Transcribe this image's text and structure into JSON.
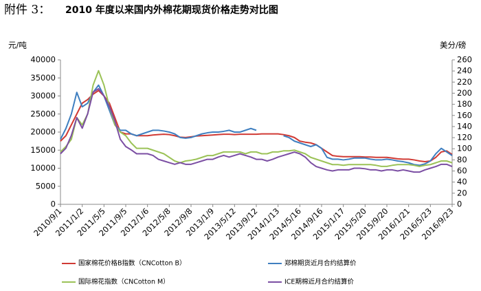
{
  "chart_data": {
    "type": "line",
    "label": "附件 3：",
    "title": "2010 年度以来国内外棉花期现货价格走势对比图",
    "y_label": "元/吨",
    "y2_label": "美分/磅",
    "categories": [
      "2010/9/1",
      null,
      null,
      null,
      "2011/1/2",
      null,
      null,
      null,
      "2011/5/5",
      null,
      null,
      null,
      "2011/9/5",
      null,
      null,
      null,
      "2012/1/6",
      null,
      null,
      null,
      "2012/5/8",
      null,
      null,
      null,
      "2012/9/8",
      null,
      null,
      null,
      "2013/1/9",
      null,
      null,
      null,
      "2013/5/12",
      null,
      null,
      null,
      "2013/9/12",
      null,
      null,
      null,
      "2014/1/13",
      null,
      null,
      null,
      "2014/5/16",
      null,
      null,
      null,
      "2014/9/16",
      null,
      null,
      null,
      "2015/1/17",
      null,
      null,
      null,
      "2015/5/20",
      null,
      null,
      null,
      "2015/9/20",
      null,
      null,
      null,
      "2016/1/21",
      null,
      null,
      null,
      "2016/5/23",
      null,
      null,
      null,
      "2016/9/23"
    ],
    "series": [
      {
        "name": "国家棉花价格B指数（CNCotton B）",
        "color": "#d03a34",
        "values": [
          17500,
          19000,
          22000,
          25000,
          28000,
          29000,
          30500,
          31500,
          30000,
          28000,
          24000,
          20000,
          19500,
          19500,
          19000,
          19000,
          19000,
          19200,
          19300,
          19400,
          19300,
          19000,
          18600,
          18500,
          18700,
          18900,
          19000,
          19100,
          19200,
          19300,
          19400,
          19400,
          19300,
          19400,
          19400,
          19400,
          19400,
          19500,
          19500,
          19500,
          19500,
          19300,
          19000,
          18500,
          17500,
          17200,
          17000,
          16500,
          15500,
          14500,
          13500,
          13300,
          13200,
          13200,
          13200,
          13200,
          13100,
          13100,
          13000,
          13000,
          13000,
          12800,
          12600,
          12500,
          12500,
          12300,
          12000,
          11800,
          12000,
          13000,
          14500,
          14800,
          13800
        ]
      },
      {
        "name": "郑棉期货近月合约结算价",
        "color": "#3f7fc0",
        "values": [
          18000,
          21000,
          25000,
          31000,
          27000,
          28000,
          31000,
          33000,
          30000,
          26000,
          22000,
          20500,
          20500,
          19500,
          19000,
          19500,
          20000,
          20500,
          20500,
          20300,
          20000,
          19500,
          18500,
          18300,
          18500,
          19000,
          19500,
          19800,
          20000,
          20000,
          20200,
          20500,
          20000,
          20000,
          20500,
          21000,
          20500,
          null,
          null,
          null,
          null,
          19000,
          18500,
          17500,
          17000,
          16500,
          16000,
          16500,
          15500,
          13000,
          12500,
          12500,
          12300,
          12500,
          12800,
          12800,
          12800,
          12500,
          12300,
          12300,
          12500,
          12300,
          12000,
          11800,
          11500,
          11000,
          10800,
          11200,
          12000,
          14000,
          15500,
          14500,
          13500
        ]
      },
      {
        "name": "国际棉花指数（CNCotton M）",
        "color": "#9bc257",
        "values": [
          14500,
          16000,
          18000,
          24000,
          22000,
          25000,
          33000,
          37000,
          33000,
          27000,
          22000,
          20000,
          19000,
          17000,
          15500,
          15500,
          15500,
          15000,
          14500,
          14000,
          13000,
          12000,
          11500,
          12000,
          12200,
          12500,
          13000,
          13500,
          13500,
          14000,
          14500,
          14500,
          14500,
          14500,
          14000,
          14500,
          14500,
          14000,
          14000,
          14500,
          14500,
          14800,
          14800,
          15000,
          14500,
          14000,
          13000,
          12500,
          12000,
          11500,
          11000,
          11000,
          10800,
          11000,
          11000,
          11000,
          11000,
          11000,
          10800,
          10500,
          10500,
          10800,
          11000,
          11000,
          11000,
          10800,
          10500,
          10800,
          11000,
          11500,
          12000,
          12000,
          11500
        ]
      },
      {
        "name": "ICE期棉近月合约结算价",
        "color": "#7b4ea3",
        "axis": "y2",
        "values": [
          91,
          101,
          124,
          156,
          137,
          163,
          202,
          208,
          195,
          176,
          150,
          117,
          104,
          98,
          91,
          91,
          91,
          88,
          81,
          78,
          75,
          72,
          75,
          72,
          72,
          75,
          78,
          81,
          81,
          85,
          88,
          85,
          88,
          91,
          88,
          85,
          81,
          81,
          78,
          81,
          85,
          88,
          91,
          94,
          91,
          85,
          75,
          68,
          65,
          62,
          60,
          62,
          62,
          62,
          65,
          65,
          64,
          62,
          62,
          60,
          62,
          62,
          60,
          62,
          60,
          58,
          58,
          62,
          65,
          68,
          72,
          72,
          68
        ]
      }
    ],
    "ylim": [
      0,
      40000
    ],
    "yticks": [
      0,
      5000,
      10000,
      15000,
      20000,
      25000,
      30000,
      35000,
      40000
    ],
    "y2lim": [
      0,
      260
    ],
    "y2ticks": [
      0,
      20,
      40,
      60,
      80,
      100,
      120,
      140,
      160,
      180,
      200,
      220,
      240,
      260
    ],
    "grid": false
  }
}
